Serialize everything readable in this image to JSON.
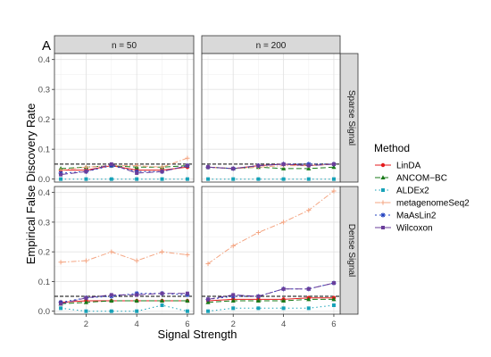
{
  "panel_label": "A",
  "axis": {
    "ylabel": "Empirical False Discovery Rate",
    "xlabel": "Signal Strength"
  },
  "legend": {
    "title": "Method"
  },
  "facets": {
    "cols": [
      "n = 50",
      "n = 200"
    ],
    "rows": [
      "Sparse Signal",
      "Dense Signal"
    ]
  },
  "chart_data": {
    "type": "line",
    "x": [
      1,
      2,
      3,
      4,
      5,
      6
    ],
    "x_ticks": [
      2,
      4,
      6
    ],
    "x_tick_labels": [
      "2",
      "4",
      "6"
    ],
    "xlim": [
      0.75,
      6.25
    ],
    "ylim": [
      -0.01,
      0.42
    ],
    "y_ticks": [
      0.0,
      0.1,
      0.2,
      0.3,
      0.4
    ],
    "y_tick_labels": [
      "0.0",
      "0.1",
      "0.2",
      "0.3",
      "0.4"
    ],
    "reference_line": 0.05,
    "grid": true,
    "legend_position": "right",
    "series_styles": [
      {
        "name": "LinDA",
        "color": "#e41a1c",
        "dash": "",
        "marker": "circle"
      },
      {
        "name": "ANCOM−BC",
        "color": "#1a7a1a",
        "dash": "6,3",
        "marker": "triangle"
      },
      {
        "name": "ALDEx2",
        "color": "#17a2b8",
        "dash": "1.5,3",
        "marker": "square"
      },
      {
        "name": "metagenomeSeq2",
        "color": "#f4a582",
        "dash": "6,2,1.5,2",
        "marker": "plus"
      },
      {
        "name": "MaAsLin2",
        "color": "#1f3fbf",
        "dash": "2,3",
        "marker": "star"
      },
      {
        "name": "Wilcoxon",
        "color": "#6a3d9a",
        "dash": "8,3",
        "marker": "square"
      }
    ],
    "panels": [
      {
        "column": "n = 50",
        "row": "Sparse Signal",
        "series": [
          {
            "name": "LinDA",
            "values": [
              0.03,
              0.03,
              0.045,
              0.03,
              0.03,
              0.04
            ]
          },
          {
            "name": "ANCOM−BC",
            "values": [
              0.035,
              0.04,
              0.045,
              0.04,
              0.04,
              0.045
            ]
          },
          {
            "name": "ALDEx2",
            "values": [
              0.0,
              0.0,
              0.0,
              0.0,
              0.0,
              0.0
            ]
          },
          {
            "name": "metagenomeSeq2",
            "values": [
              0.03,
              0.04,
              0.045,
              0.045,
              0.04,
              0.07
            ]
          },
          {
            "name": "MaAsLin2",
            "values": [
              0.02,
              0.025,
              0.045,
              0.025,
              0.025,
              0.045
            ]
          },
          {
            "name": "Wilcoxon",
            "values": [
              0.015,
              0.025,
              0.05,
              0.02,
              0.025,
              0.045
            ]
          }
        ]
      },
      {
        "column": "n = 200",
        "row": "Sparse Signal",
        "series": [
          {
            "name": "LinDA",
            "values": [
              0.04,
              0.035,
              0.045,
              0.05,
              0.045,
              0.05
            ]
          },
          {
            "name": "ANCOM−BC",
            "values": [
              0.04,
              0.035,
              0.04,
              0.035,
              0.035,
              0.04
            ]
          },
          {
            "name": "ALDEx2",
            "values": [
              0.0,
              0.0,
              0.0,
              0.0,
              0.0,
              0.0
            ]
          },
          {
            "name": "metagenomeSeq2",
            "values": [
              0.04,
              0.035,
              0.04,
              0.045,
              0.045,
              0.05
            ]
          },
          {
            "name": "MaAsLin2",
            "values": [
              0.04,
              0.035,
              0.045,
              0.05,
              0.05,
              0.05
            ]
          },
          {
            "name": "Wilcoxon",
            "values": [
              0.04,
              0.035,
              0.045,
              0.05,
              0.045,
              0.05
            ]
          }
        ]
      },
      {
        "column": "n = 50",
        "row": "Dense Signal",
        "series": [
          {
            "name": "LinDA",
            "values": [
              0.03,
              0.035,
              0.035,
              0.035,
              0.035,
              0.035
            ]
          },
          {
            "name": "ANCOM−BC",
            "values": [
              0.025,
              0.03,
              0.035,
              0.035,
              0.035,
              0.035
            ]
          },
          {
            "name": "ALDEx2",
            "values": [
              0.01,
              0.0,
              0.0,
              0.0,
              0.02,
              0.0
            ]
          },
          {
            "name": "metagenomeSeq2",
            "values": [
              0.165,
              0.17,
              0.2,
              0.17,
              0.2,
              0.19
            ]
          },
          {
            "name": "MaAsLin2",
            "values": [
              0.03,
              0.045,
              0.05,
              0.06,
              0.06,
              0.055
            ]
          },
          {
            "name": "Wilcoxon",
            "values": [
              0.025,
              0.045,
              0.055,
              0.055,
              0.06,
              0.06
            ]
          }
        ]
      },
      {
        "column": "n = 200",
        "row": "Dense Signal",
        "series": [
          {
            "name": "LinDA",
            "values": [
              0.035,
              0.04,
              0.04,
              0.04,
              0.045,
              0.045
            ]
          },
          {
            "name": "ANCOM−BC",
            "values": [
              0.03,
              0.035,
              0.035,
              0.035,
              0.04,
              0.04
            ]
          },
          {
            "name": "ALDEx2",
            "values": [
              0.0,
              0.01,
              0.01,
              0.01,
              0.01,
              0.02
            ]
          },
          {
            "name": "metagenomeSeq2",
            "values": [
              0.16,
              0.22,
              0.265,
              0.3,
              0.34,
              0.405
            ]
          },
          {
            "name": "MaAsLin2",
            "values": [
              0.04,
              0.05,
              0.05,
              0.075,
              0.075,
              0.095
            ]
          },
          {
            "name": "Wilcoxon",
            "values": [
              0.04,
              0.055,
              0.05,
              0.075,
              0.075,
              0.095
            ]
          }
        ]
      }
    ]
  }
}
